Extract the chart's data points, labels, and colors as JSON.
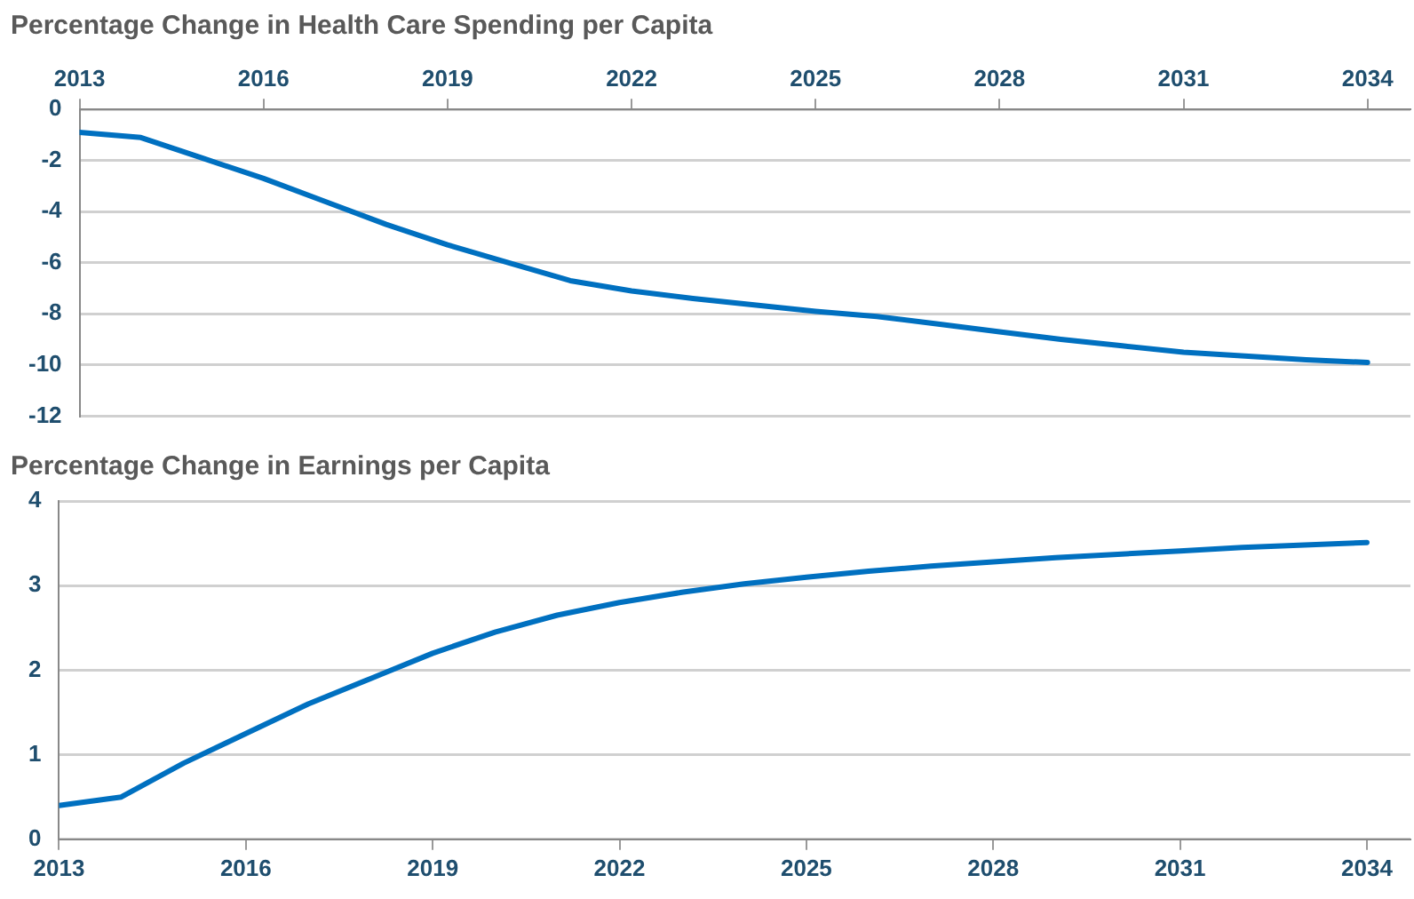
{
  "chart_data": [
    {
      "type": "line",
      "title": "Percentage Change in Health Care Spending per Capita",
      "x": [
        2013,
        2014,
        2015,
        2016,
        2017,
        2018,
        2019,
        2020,
        2021,
        2022,
        2023,
        2024,
        2025,
        2026,
        2027,
        2028,
        2029,
        2030,
        2031,
        2032,
        2033,
        2034
      ],
      "series": [
        {
          "color": "#0070c0",
          "values": [
            -0.9,
            -1.1,
            -1.9,
            -2.7,
            -3.6,
            -4.5,
            -5.3,
            -6.0,
            -6.7,
            -7.1,
            -7.4,
            -7.65,
            -7.9,
            -8.1,
            -8.4,
            -8.7,
            -9.0,
            -9.25,
            -9.5,
            -9.65,
            -9.8,
            -9.9
          ]
        }
      ],
      "xlim": [
        2013,
        2034.7
      ],
      "xticks": [
        2013,
        2016,
        2019,
        2022,
        2025,
        2028,
        2031,
        2034
      ],
      "ylim": [
        -12,
        0
      ],
      "yticks": [
        -12,
        -10,
        -8,
        -6,
        -4,
        -2,
        0
      ],
      "grid": "y",
      "legend": false,
      "marker": "none",
      "line_style": "solid"
    },
    {
      "type": "line",
      "title": "Percentage Change in Earnings per Capita",
      "x": [
        2013,
        2014,
        2015,
        2016,
        2017,
        2018,
        2019,
        2020,
        2021,
        2022,
        2023,
        2024,
        2025,
        2026,
        2027,
        2028,
        2029,
        2030,
        2031,
        2032,
        2033,
        2034
      ],
      "series": [
        {
          "color": "#0070c0",
          "values": [
            0.4,
            0.5,
            0.9,
            1.25,
            1.6,
            1.9,
            2.2,
            2.45,
            2.65,
            2.8,
            2.92,
            3.02,
            3.1,
            3.17,
            3.23,
            3.28,
            3.33,
            3.37,
            3.41,
            3.45,
            3.48,
            3.51
          ]
        }
      ],
      "xlim": [
        2013,
        2034.7
      ],
      "xticks": [
        2013,
        2016,
        2019,
        2022,
        2025,
        2028,
        2031,
        2034
      ],
      "ylim": [
        0,
        4
      ],
      "yticks": [
        0,
        1,
        2,
        3,
        4
      ],
      "grid": "y",
      "legend": false,
      "marker": "none",
      "line_style": "solid"
    }
  ]
}
